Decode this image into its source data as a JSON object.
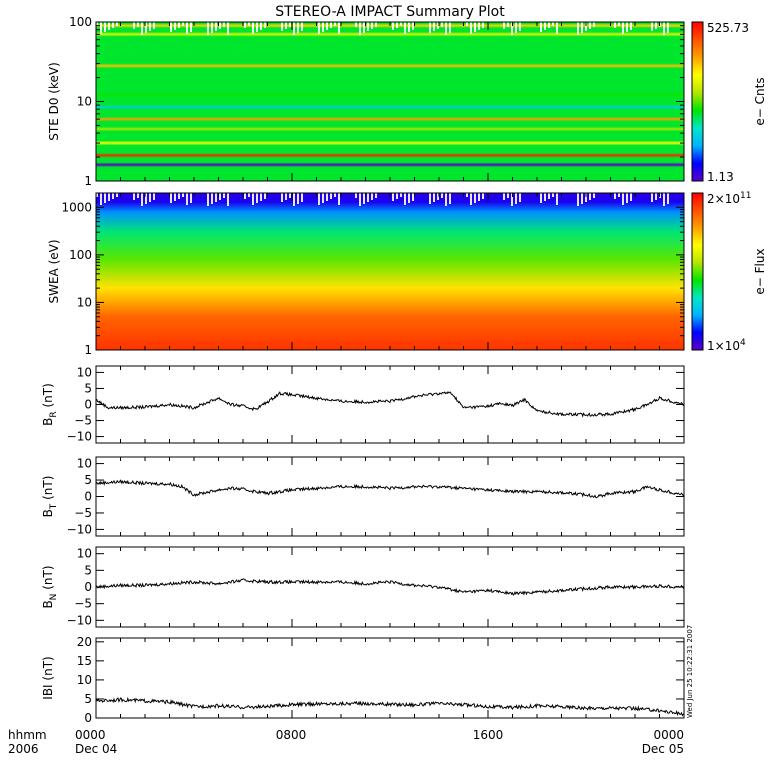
{
  "title": "STEREO-A IMPACT Summary Plot",
  "footer": {
    "left_label_1": "hhmm",
    "left_label_2": "2006",
    "ticks": [
      "0000",
      "0800",
      "1600",
      "0000"
    ],
    "dates": [
      "Dec 04",
      "",
      "",
      "Dec 05"
    ]
  },
  "timestamp": "Wed Jun 25 10:22:31 2007",
  "colors": {
    "spectrogram": [
      "#5a00c8",
      "#0000ff",
      "#00b4ff",
      "#00e6c8",
      "#00e600",
      "#b4e600",
      "#ffff00",
      "#ffa000",
      "#ff5000",
      "#ff0000"
    ],
    "line": "#000000",
    "frame": "#000000"
  },
  "chart_data": [
    {
      "type": "heatmap",
      "id": "ste",
      "ylabel": "STE D0 (keV)",
      "yscale": "log",
      "ylim": [
        1,
        100
      ],
      "ytick_labels": [
        "1",
        "10",
        "100"
      ],
      "colorbar": {
        "max_label": "525.73",
        "min_label": "1.13",
        "label": "e− Cnts"
      },
      "bands": [
        {
          "energy": 90,
          "level": 0.72
        },
        {
          "energy": 70,
          "level": 0.62
        },
        {
          "energy": 28,
          "level": 0.74
        },
        {
          "energy": 12,
          "level": 0.45
        },
        {
          "energy": 8.5,
          "level": 0.28
        },
        {
          "energy": 6,
          "level": 0.78
        },
        {
          "energy": 4.5,
          "level": 0.55
        },
        {
          "energy": 3,
          "level": 0.66
        },
        {
          "energy": 2.1,
          "level": 0.95
        },
        {
          "energy": 1.6,
          "level": 0.0
        }
      ]
    },
    {
      "type": "heatmap",
      "id": "swea",
      "ylabel": "SWEA (eV)",
      "yscale": "log",
      "ylim": [
        1,
        2000
      ],
      "ytick_labels": [
        "1",
        "10",
        "100",
        "1000"
      ],
      "colorbar": {
        "max_label": "2×10",
        "max_exp": "11",
        "min_label": "1×10",
        "min_exp": "4",
        "label": "e− Flux"
      },
      "profile": [
        {
          "energy": 1,
          "level": 0.93
        },
        {
          "energy": 5,
          "level": 0.86
        },
        {
          "energy": 20,
          "level": 0.7
        },
        {
          "energy": 80,
          "level": 0.5
        },
        {
          "energy": 300,
          "level": 0.38
        },
        {
          "energy": 800,
          "level": 0.2
        },
        {
          "energy": 1300,
          "level": 0.08
        },
        {
          "energy": 2000,
          "level": 0.06
        }
      ]
    },
    {
      "type": "line",
      "id": "br",
      "ylabel": "B",
      "ylabel_sub": "R",
      "ylabel_unit": "(nT)",
      "ylim": [
        -12,
        12
      ],
      "yticks": [
        -10,
        -5,
        0,
        5,
        10
      ],
      "xlim": [
        0,
        24
      ],
      "x": [
        0,
        0.5,
        1,
        2,
        3,
        4,
        5,
        5.5,
        6,
        6.5,
        7,
        7.5,
        8,
        9,
        10,
        11,
        12,
        13,
        14,
        14.5,
        15,
        16,
        16.5,
        17,
        17.5,
        18,
        19,
        20,
        21,
        22,
        22.5,
        23,
        24
      ],
      "y": [
        1.5,
        -1,
        -1,
        -0.8,
        0,
        -1,
        2,
        0,
        -0.5,
        -1.5,
        0.8,
        3.5,
        3,
        2,
        1,
        0.8,
        1,
        2.5,
        3.5,
        3.6,
        -1,
        -0.5,
        0.3,
        -0.3,
        1.5,
        -2,
        -3,
        -3.2,
        -3,
        -1.5,
        0,
        2,
        0
      ]
    },
    {
      "type": "line",
      "id": "bt",
      "ylabel": "B",
      "ylabel_sub": "T",
      "ylabel_unit": "(nT)",
      "ylim": [
        -12,
        12
      ],
      "yticks": [
        -10,
        -5,
        0,
        5,
        10
      ],
      "xlim": [
        0,
        24
      ],
      "x": [
        0,
        1,
        2,
        3,
        3.5,
        4,
        5,
        5.5,
        6,
        6.5,
        7,
        8,
        9,
        10,
        11,
        12,
        13,
        14,
        15,
        16,
        17,
        18,
        19,
        20,
        20.5,
        21,
        22,
        22.5,
        23,
        24
      ],
      "y": [
        4,
        4.5,
        4,
        3.8,
        3,
        0.5,
        2,
        2.5,
        2.2,
        1.5,
        1,
        2,
        2.5,
        3,
        3,
        2.5,
        3,
        3,
        2.5,
        2,
        1.5,
        1.5,
        1.2,
        0.5,
        0,
        1,
        1.5,
        3,
        2,
        0.5
      ]
    },
    {
      "type": "line",
      "id": "bn",
      "ylabel": "B",
      "ylabel_sub": "N",
      "ylabel_unit": "(nT)",
      "ylim": [
        -12,
        12
      ],
      "yticks": [
        -10,
        -5,
        0,
        5,
        10
      ],
      "xlim": [
        0,
        24
      ],
      "x": [
        0,
        1,
        2,
        3,
        4,
        5,
        6,
        7,
        8,
        9,
        10,
        11,
        12,
        13,
        14,
        15,
        16,
        17,
        18,
        19,
        20,
        21,
        22,
        23,
        24
      ],
      "y": [
        0,
        0.5,
        0.5,
        1,
        1.5,
        1,
        2,
        1.5,
        1.5,
        1.5,
        1.5,
        1,
        1.5,
        0.5,
        0,
        -1.5,
        -1,
        -2,
        -1.5,
        -1,
        -0.5,
        0,
        0,
        0.3,
        0
      ]
    },
    {
      "type": "line",
      "id": "bmag",
      "ylabel": "IBI (nT)",
      "ylim": [
        0,
        21
      ],
      "yticks": [
        0,
        5,
        10,
        15,
        20
      ],
      "xlim": [
        0,
        24
      ],
      "x": [
        0,
        1,
        2,
        3,
        4,
        5,
        6,
        7,
        8,
        9,
        10,
        11,
        12,
        13,
        14,
        15,
        16,
        17,
        18,
        19,
        20,
        21,
        22,
        23,
        24
      ],
      "y": [
        4.5,
        4.8,
        4.5,
        4.2,
        3,
        3.2,
        2.8,
        3,
        3.5,
        3.7,
        3.8,
        3.8,
        3.6,
        3.5,
        3.8,
        3.5,
        3.0,
        2.8,
        3.2,
        3.0,
        2.5,
        2.7,
        2.5,
        2.0,
        1.0
      ]
    }
  ]
}
